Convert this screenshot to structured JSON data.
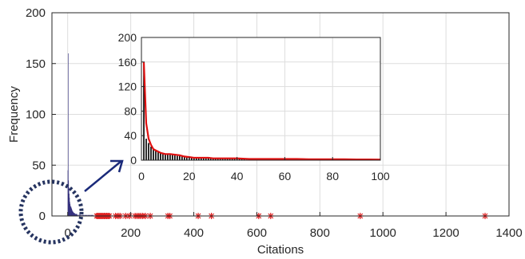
{
  "chart_data": [
    {
      "type": "bar",
      "role": "main",
      "xlabel": "Citations",
      "ylabel": "Frequency",
      "xlim": [
        -50,
        1400
      ],
      "ylim": [
        0,
        200
      ],
      "xticks": [
        0,
        200,
        400,
        600,
        800,
        1000,
        1200,
        1400
      ],
      "yticks": [
        0,
        50,
        100,
        150,
        200
      ],
      "grid": true,
      "histogram": {
        "bin_width": 1,
        "x": [
          0,
          1,
          2,
          3,
          4,
          5,
          6,
          7,
          8,
          9,
          10,
          11,
          12,
          13,
          14,
          15,
          16,
          17,
          18,
          19,
          20,
          21,
          22,
          23,
          24,
          25,
          26,
          27,
          28,
          29,
          30,
          32,
          34,
          36,
          38,
          40,
          42,
          44,
          46,
          48,
          50,
          52,
          54,
          56,
          58,
          60,
          62,
          64,
          66,
          68,
          70,
          72,
          74,
          76,
          78,
          80
        ],
        "values": [
          45,
          160,
          35,
          28,
          22,
          18,
          14,
          12,
          10,
          9,
          9,
          8,
          7,
          6,
          5,
          5,
          4,
          4,
          3,
          3,
          3,
          3,
          2,
          2,
          2,
          2,
          2,
          2,
          1,
          1,
          2,
          1,
          1,
          2,
          1,
          2,
          1,
          1,
          1,
          1,
          1,
          1,
          1,
          1,
          1,
          1,
          1,
          1,
          1,
          1,
          1,
          1,
          1,
          1,
          1,
          1
        ],
        "color": "#2e2a7a"
      },
      "outliers": {
        "x": [
          92,
          96,
          100,
          104,
          108,
          112,
          116,
          120,
          124,
          128,
          132,
          152,
          160,
          166,
          184,
          196,
          214,
          220,
          226,
          232,
          238,
          246,
          262,
          318,
          324,
          414,
          456,
          606,
          644,
          928,
          1324
        ],
        "y": 0,
        "marker": "asterisk",
        "color": "#e02020"
      }
    },
    {
      "type": "bar",
      "role": "inset",
      "xlim": [
        0,
        100
      ],
      "ylim": [
        0,
        200
      ],
      "xticks": [
        0,
        20,
        40,
        60,
        80,
        100
      ],
      "yticks": [
        0,
        40,
        80,
        120,
        160,
        200
      ],
      "grid": true,
      "bars": {
        "x": [
          1,
          2,
          3,
          4,
          5,
          6,
          7,
          8,
          9,
          10,
          11,
          12,
          13,
          14,
          15,
          16,
          17,
          18,
          19,
          20,
          21,
          22,
          23,
          24,
          25,
          26,
          27,
          28,
          29,
          30,
          31,
          32,
          33,
          34,
          35,
          36,
          37,
          38,
          39,
          40,
          41,
          42,
          43,
          44,
          45,
          46,
          47,
          48,
          49,
          50,
          52,
          54,
          56,
          58,
          60,
          62,
          64,
          66,
          68,
          70,
          72,
          74,
          76,
          78,
          80,
          82,
          84,
          86,
          88,
          90,
          92,
          94,
          96,
          98
        ],
        "values": [
          160,
          35,
          28,
          22,
          18,
          16,
          14,
          12,
          11,
          10,
          10,
          9,
          9,
          8,
          7,
          7,
          6,
          5,
          5,
          5,
          4,
          4,
          4,
          4,
          4,
          3,
          3,
          3,
          3,
          3,
          3,
          3,
          3,
          2,
          2,
          2,
          2,
          3,
          2,
          2,
          2,
          2,
          2,
          1,
          1,
          2,
          2,
          1,
          1,
          1,
          1,
          1,
          1,
          1,
          1,
          1,
          1,
          1,
          1,
          1,
          1,
          1,
          1,
          1,
          1,
          1,
          1,
          1,
          1,
          1,
          1,
          1,
          1,
          1
        ],
        "color": "#000000"
      },
      "fit_line": {
        "x": [
          1,
          2,
          3,
          4,
          5,
          6,
          7,
          8,
          9,
          10,
          12,
          14,
          16,
          18,
          20,
          22,
          24,
          26,
          28,
          30,
          35,
          40,
          45,
          50,
          55,
          60,
          65,
          70,
          75,
          80,
          85,
          90,
          95,
          100
        ],
        "y": [
          160,
          60,
          35,
          25,
          18,
          16,
          14,
          12,
          11,
          10,
          10,
          9,
          8,
          6,
          5,
          4,
          4,
          4,
          4,
          3,
          3,
          3,
          2,
          2,
          2,
          2,
          2,
          1.5,
          1.5,
          1.5,
          1.5,
          1.2,
          1.2,
          1
        ],
        "color": "#e01010"
      }
    }
  ]
}
